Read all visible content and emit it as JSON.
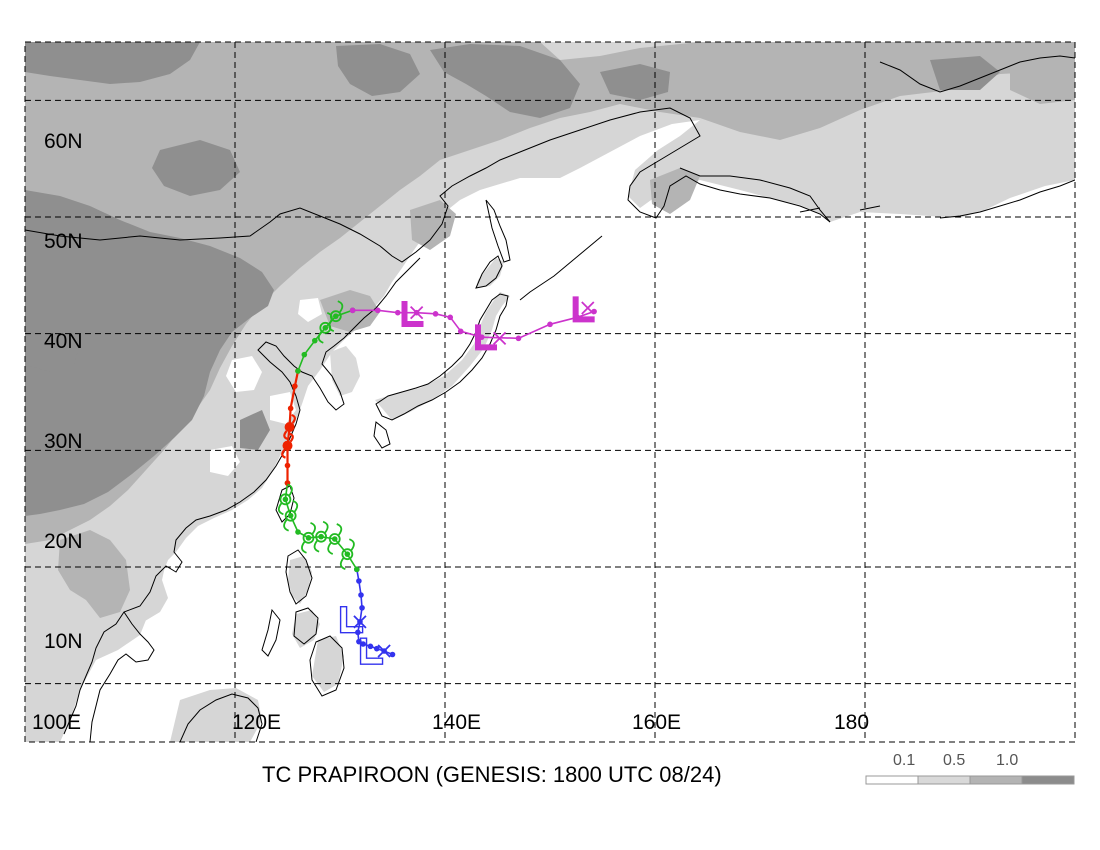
{
  "title": "TC PRAPIROON (GENESIS: 1800 UTC 08/24)",
  "legend": {
    "labels": [
      "0.1",
      "0.5",
      "1.0"
    ],
    "colors": [
      "#ffffff",
      "#d9d9d9",
      "#b4b4b4",
      "#8c8c8c"
    ]
  },
  "map": {
    "lon_range": [
      100,
      200
    ],
    "lat_range": [
      5,
      65
    ],
    "lon_labels": [
      "100E",
      "120E",
      "140E",
      "160E",
      "180"
    ],
    "lat_labels": [
      "10N",
      "20N",
      "30N",
      "40N",
      "50N",
      "60N"
    ]
  },
  "colors": {
    "tropical_depression": "#3333ee",
    "tropical_storm": "#22bb22",
    "typhoon": "#ee2200",
    "extratropical": "#cc33cc",
    "land_light": "#d6d6d6",
    "land_mid": "#b4b4b4",
    "land_dark": "#8f8f8f"
  },
  "track": {
    "depression": [
      [
        135.0,
        12.5
      ],
      [
        134.2,
        12.8
      ],
      [
        133.5,
        13.0
      ],
      [
        132.9,
        13.2
      ],
      [
        132.2,
        13.4
      ],
      [
        131.8,
        13.6
      ],
      [
        131.7,
        14.4
      ],
      [
        131.9,
        15.3
      ],
      [
        132.1,
        16.5
      ],
      [
        132.0,
        17.6
      ],
      [
        131.8,
        18.8
      ],
      [
        131.6,
        19.8
      ]
    ],
    "storm": [
      [
        131.6,
        19.8
      ],
      [
        130.7,
        21.1
      ],
      [
        129.5,
        22.4
      ],
      [
        128.2,
        22.6
      ],
      [
        127.0,
        22.5
      ],
      [
        126.0,
        23.0
      ],
      [
        125.3,
        24.4
      ],
      [
        124.8,
        25.8
      ],
      [
        125.0,
        27.2
      ]
    ],
    "typhoon": [
      [
        125.0,
        27.2
      ],
      [
        125.0,
        28.7
      ],
      [
        125.0,
        30.4
      ],
      [
        125.2,
        32.0
      ],
      [
        125.3,
        33.6
      ],
      [
        125.7,
        35.5
      ],
      [
        126.0,
        36.8
      ]
    ],
    "storm2": [
      [
        126.0,
        36.8
      ],
      [
        126.6,
        38.2
      ],
      [
        127.6,
        39.4
      ],
      [
        128.6,
        40.5
      ],
      [
        129.6,
        41.5
      ],
      [
        131.2,
        42.0
      ]
    ],
    "extratropical": [
      [
        131.2,
        42.0
      ],
      [
        133.6,
        42.0
      ],
      [
        135.5,
        41.8
      ],
      [
        137.3,
        41.8
      ],
      [
        139.1,
        41.7
      ],
      [
        140.5,
        41.4
      ],
      [
        141.5,
        40.2
      ],
      [
        143.5,
        39.7
      ],
      [
        147.0,
        39.6
      ],
      [
        150.0,
        40.8
      ],
      [
        152.6,
        41.4
      ],
      [
        154.2,
        41.9
      ]
    ]
  }
}
